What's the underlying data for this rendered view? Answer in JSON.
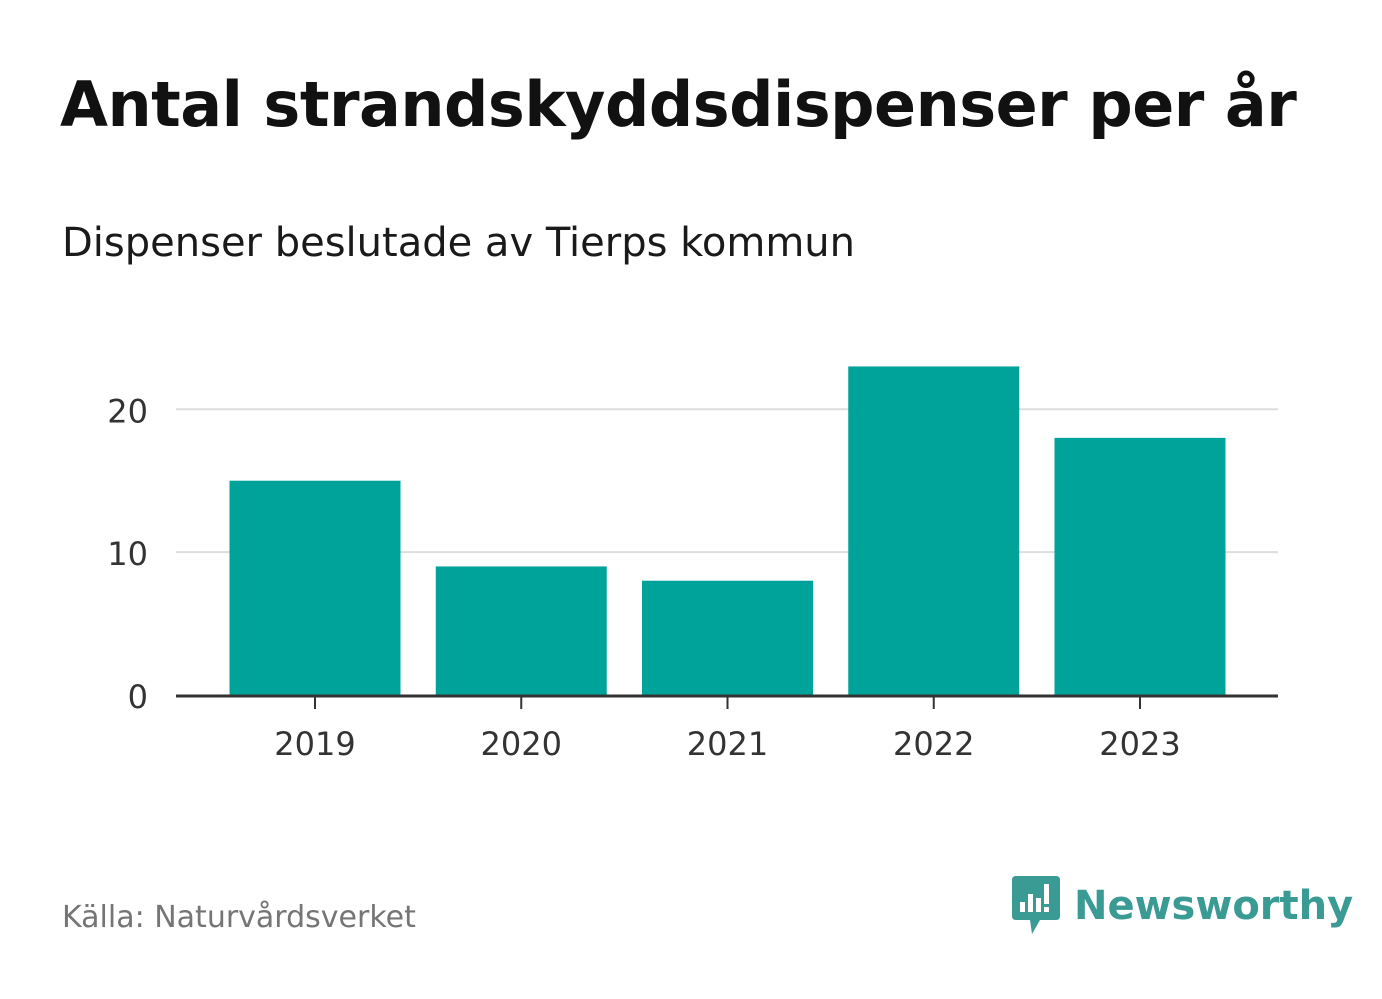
{
  "title": "Antal strandskyddsdispenser per år",
  "subtitle": "Dispenser beslutade av Tierps kommun",
  "source": "Källa: Naturvårdsverket",
  "brand": {
    "name": "Newsworthy",
    "icon": "newsworthy-logo-icon"
  },
  "colors": {
    "bar": "#00a39a",
    "grid": "#dddddd",
    "axis": "#333333",
    "brand": "#3a9a94"
  },
  "chart_data": {
    "type": "bar",
    "categories": [
      "2019",
      "2020",
      "2021",
      "2022",
      "2023"
    ],
    "values": [
      15,
      9,
      8,
      23,
      18
    ],
    "title": "Antal strandskyddsdispenser per år",
    "xlabel": "",
    "ylabel": "",
    "ylim": [
      0,
      24.5
    ],
    "yticks": [
      0,
      10,
      20
    ],
    "grid": true
  }
}
